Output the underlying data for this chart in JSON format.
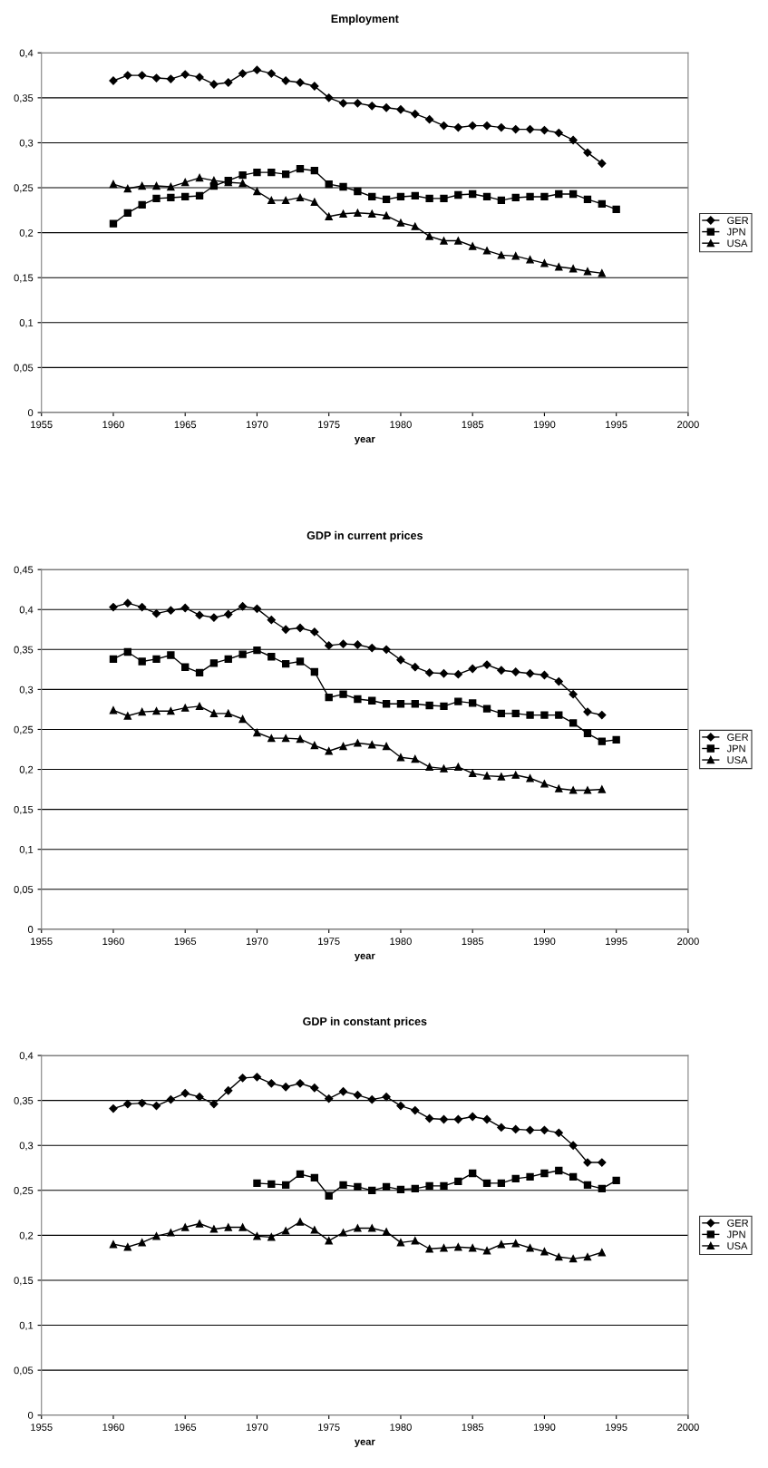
{
  "chart_data": [
    {
      "type": "line",
      "title": "Employment",
      "xlabel": "year",
      "xlim": [
        1955,
        2000
      ],
      "xticks": [
        1955,
        1960,
        1965,
        1970,
        1975,
        1980,
        1985,
        1990,
        1995,
        2000
      ],
      "ylim": [
        0,
        0.4
      ],
      "yticks": [
        0,
        {
          "value": 0.05,
          "label": "0,05"
        },
        {
          "value": 0.1,
          "label": "0,1"
        },
        {
          "value": 0.15,
          "label": "0,15"
        },
        {
          "value": 0.2,
          "label": "0,2"
        },
        {
          "value": 0.25,
          "label": "0,25"
        },
        {
          "value": 0.3,
          "label": "0,3"
        },
        {
          "value": 0.35,
          "label": "0,35"
        },
        {
          "value": 0.4,
          "label": "0,4"
        }
      ],
      "grid": "y",
      "legend": "right",
      "series": [
        {
          "name": "GER",
          "color": "#000000",
          "marker": "diamond",
          "x": [
            1960,
            1961,
            1962,
            1963,
            1964,
            1965,
            1966,
            1967,
            1968,
            1969,
            1970,
            1971,
            1972,
            1973,
            1974,
            1975,
            1976,
            1977,
            1978,
            1979,
            1980,
            1981,
            1982,
            1983,
            1984,
            1985,
            1986,
            1987,
            1988,
            1989,
            1990,
            1991,
            1992,
            1993,
            1994
          ],
          "values": [
            0.369,
            0.375,
            0.375,
            0.372,
            0.371,
            0.376,
            0.373,
            0.365,
            0.367,
            0.377,
            0.381,
            0.377,
            0.369,
            0.367,
            0.363,
            0.35,
            0.344,
            0.344,
            0.341,
            0.339,
            0.337,
            0.332,
            0.326,
            0.319,
            0.317,
            0.319,
            0.319,
            0.317,
            0.315,
            0.315,
            0.314,
            0.311,
            0.303,
            0.289,
            0.277
          ]
        },
        {
          "name": "JPN",
          "color": "#000000",
          "marker": "square",
          "x": [
            1960,
            1961,
            1962,
            1963,
            1964,
            1965,
            1966,
            1967,
            1968,
            1969,
            1970,
            1971,
            1972,
            1973,
            1974,
            1975,
            1976,
            1977,
            1978,
            1979,
            1980,
            1981,
            1982,
            1983,
            1984,
            1985,
            1986,
            1987,
            1988,
            1989,
            1990,
            1991,
            1992,
            1993,
            1994,
            1995
          ],
          "values": [
            0.21,
            0.222,
            0.231,
            0.238,
            0.239,
            0.24,
            0.241,
            0.252,
            0.258,
            0.264,
            0.267,
            0.267,
            0.265,
            0.271,
            0.269,
            0.254,
            0.251,
            0.246,
            0.24,
            0.237,
            0.24,
            0.241,
            0.238,
            0.238,
            0.242,
            0.243,
            0.24,
            0.236,
            0.239,
            0.24,
            0.24,
            0.243,
            0.243,
            0.237,
            0.232,
            0.226
          ]
        },
        {
          "name": "USA",
          "color": "#000000",
          "marker": "triangle",
          "x": [
            1960,
            1961,
            1962,
            1963,
            1964,
            1965,
            1966,
            1967,
            1968,
            1969,
            1970,
            1971,
            1972,
            1973,
            1974,
            1975,
            1976,
            1977,
            1978,
            1979,
            1980,
            1981,
            1982,
            1983,
            1984,
            1985,
            1986,
            1987,
            1988,
            1989,
            1990,
            1991,
            1992,
            1993,
            1994
          ],
          "values": [
            0.254,
            0.249,
            0.252,
            0.252,
            0.251,
            0.256,
            0.261,
            0.258,
            0.256,
            0.255,
            0.246,
            0.236,
            0.236,
            0.239,
            0.234,
            0.218,
            0.221,
            0.222,
            0.221,
            0.219,
            0.211,
            0.207,
            0.196,
            0.191,
            0.191,
            0.185,
            0.18,
            0.175,
            0.174,
            0.17,
            0.166,
            0.162,
            0.16,
            0.157,
            0.155
          ]
        }
      ]
    },
    {
      "type": "line",
      "title": "GDP in current prices",
      "xlabel": "year",
      "xlim": [
        1955,
        2000
      ],
      "xticks": [
        1955,
        1960,
        1965,
        1970,
        1975,
        1980,
        1985,
        1990,
        1995,
        2000
      ],
      "ylim": [
        0,
        0.45
      ],
      "yticks": [
        0,
        {
          "value": 0.05,
          "label": "0,05"
        },
        {
          "value": 0.1,
          "label": "0,1"
        },
        {
          "value": 0.15,
          "label": "0,15"
        },
        {
          "value": 0.2,
          "label": "0,2"
        },
        {
          "value": 0.25,
          "label": "0,25"
        },
        {
          "value": 0.3,
          "label": "0,3"
        },
        {
          "value": 0.35,
          "label": "0,35"
        },
        {
          "value": 0.4,
          "label": "0,4"
        },
        {
          "value": 0.45,
          "label": "0,45"
        }
      ],
      "grid": "y",
      "legend": "right",
      "series": [
        {
          "name": "GER",
          "color": "#000000",
          "marker": "diamond",
          "x": [
            1960,
            1961,
            1962,
            1963,
            1964,
            1965,
            1966,
            1967,
            1968,
            1969,
            1970,
            1971,
            1972,
            1973,
            1974,
            1975,
            1976,
            1977,
            1978,
            1979,
            1980,
            1981,
            1982,
            1983,
            1984,
            1985,
            1986,
            1987,
            1988,
            1989,
            1990,
            1991,
            1992,
            1993,
            1994
          ],
          "values": [
            0.403,
            0.408,
            0.403,
            0.395,
            0.399,
            0.402,
            0.393,
            0.39,
            0.394,
            0.404,
            0.401,
            0.387,
            0.375,
            0.377,
            0.372,
            0.355,
            0.357,
            0.356,
            0.352,
            0.35,
            0.337,
            0.328,
            0.321,
            0.32,
            0.319,
            0.326,
            0.331,
            0.324,
            0.322,
            0.32,
            0.318,
            0.31,
            0.294,
            0.272,
            0.268
          ]
        },
        {
          "name": "JPN",
          "color": "#000000",
          "marker": "square",
          "x": [
            1960,
            1961,
            1962,
            1963,
            1964,
            1965,
            1966,
            1967,
            1968,
            1969,
            1970,
            1971,
            1972,
            1973,
            1974,
            1975,
            1976,
            1977,
            1978,
            1979,
            1980,
            1981,
            1982,
            1983,
            1984,
            1985,
            1986,
            1987,
            1988,
            1989,
            1990,
            1991,
            1992,
            1993,
            1994,
            1995
          ],
          "values": [
            0.338,
            0.347,
            0.335,
            0.338,
            0.343,
            0.328,
            0.321,
            0.333,
            0.338,
            0.344,
            0.349,
            0.341,
            0.332,
            0.335,
            0.322,
            0.29,
            0.294,
            0.288,
            0.286,
            0.282,
            0.282,
            0.282,
            0.28,
            0.279,
            0.285,
            0.283,
            0.276,
            0.27,
            0.27,
            0.268,
            0.268,
            0.268,
            0.258,
            0.245,
            0.235,
            0.237
          ]
        },
        {
          "name": "USA",
          "color": "#000000",
          "marker": "triangle",
          "x": [
            1960,
            1961,
            1962,
            1963,
            1964,
            1965,
            1966,
            1967,
            1968,
            1969,
            1970,
            1971,
            1972,
            1973,
            1974,
            1975,
            1976,
            1977,
            1978,
            1979,
            1980,
            1981,
            1982,
            1983,
            1984,
            1985,
            1986,
            1987,
            1988,
            1989,
            1990,
            1991,
            1992,
            1993,
            1994
          ],
          "values": [
            0.274,
            0.267,
            0.272,
            0.273,
            0.273,
            0.277,
            0.279,
            0.27,
            0.27,
            0.263,
            0.246,
            0.239,
            0.239,
            0.238,
            0.23,
            0.223,
            0.229,
            0.233,
            0.231,
            0.229,
            0.215,
            0.213,
            0.203,
            0.201,
            0.203,
            0.195,
            0.192,
            0.191,
            0.193,
            0.189,
            0.182,
            0.176,
            0.174,
            0.174,
            0.175
          ]
        }
      ]
    },
    {
      "type": "line",
      "title": "GDP in constant prices",
      "xlabel": "year",
      "xlim": [
        1955,
        2000
      ],
      "xticks": [
        1955,
        1960,
        1965,
        1970,
        1975,
        1980,
        1985,
        1990,
        1995,
        2000
      ],
      "ylim": [
        0,
        0.4
      ],
      "yticks": [
        0,
        {
          "value": 0.05,
          "label": "0,05"
        },
        {
          "value": 0.1,
          "label": "0,1"
        },
        {
          "value": 0.15,
          "label": "0,15"
        },
        {
          "value": 0.2,
          "label": "0,2"
        },
        {
          "value": 0.25,
          "label": "0,25"
        },
        {
          "value": 0.3,
          "label": "0,3"
        },
        {
          "value": 0.35,
          "label": "0,35"
        },
        {
          "value": 0.4,
          "label": "0,4"
        }
      ],
      "grid": "y",
      "legend": "right",
      "series": [
        {
          "name": "GER",
          "color": "#000000",
          "marker": "diamond",
          "x": [
            1960,
            1961,
            1962,
            1963,
            1964,
            1965,
            1966,
            1967,
            1968,
            1969,
            1970,
            1971,
            1972,
            1973,
            1974,
            1975,
            1976,
            1977,
            1978,
            1979,
            1980,
            1981,
            1982,
            1983,
            1984,
            1985,
            1986,
            1987,
            1988,
            1989,
            1990,
            1991,
            1992,
            1993,
            1994
          ],
          "values": [
            0.341,
            0.346,
            0.347,
            0.344,
            0.351,
            0.358,
            0.354,
            0.346,
            0.361,
            0.375,
            0.376,
            0.369,
            0.365,
            0.369,
            0.364,
            0.352,
            0.36,
            0.356,
            0.351,
            0.354,
            0.344,
            0.339,
            0.33,
            0.329,
            0.329,
            0.332,
            0.329,
            0.32,
            0.318,
            0.317,
            0.317,
            0.314,
            0.3,
            0.281,
            0.281
          ]
        },
        {
          "name": "JPN",
          "color": "#000000",
          "marker": "square",
          "x": [
            1970,
            1971,
            1972,
            1973,
            1974,
            1975,
            1976,
            1977,
            1978,
            1979,
            1980,
            1981,
            1982,
            1983,
            1984,
            1985,
            1986,
            1987,
            1988,
            1989,
            1990,
            1991,
            1992,
            1993,
            1994,
            1995
          ],
          "values": [
            0.258,
            0.257,
            0.256,
            0.268,
            0.264,
            0.244,
            0.256,
            0.254,
            0.25,
            0.254,
            0.251,
            0.252,
            0.255,
            0.255,
            0.26,
            0.269,
            0.258,
            0.258,
            0.263,
            0.265,
            0.269,
            0.272,
            0.265,
            0.256,
            0.252,
            0.261
          ]
        },
        {
          "name": "USA",
          "color": "#000000",
          "marker": "triangle",
          "x": [
            1960,
            1961,
            1962,
            1963,
            1964,
            1965,
            1966,
            1967,
            1968,
            1969,
            1970,
            1971,
            1972,
            1973,
            1974,
            1975,
            1976,
            1977,
            1978,
            1979,
            1980,
            1981,
            1982,
            1983,
            1984,
            1985,
            1986,
            1987,
            1988,
            1989,
            1990,
            1991,
            1992,
            1993,
            1994
          ],
          "values": [
            0.19,
            0.187,
            0.192,
            0.199,
            0.203,
            0.209,
            0.213,
            0.207,
            0.209,
            0.209,
            0.199,
            0.198,
            0.205,
            0.215,
            0.206,
            0.194,
            0.203,
            0.208,
            0.208,
            0.204,
            0.192,
            0.194,
            0.185,
            0.186,
            0.187,
            0.186,
            0.183,
            0.19,
            0.191,
            0.186,
            0.182,
            0.176,
            0.174,
            0.176,
            0.181
          ]
        }
      ]
    }
  ]
}
